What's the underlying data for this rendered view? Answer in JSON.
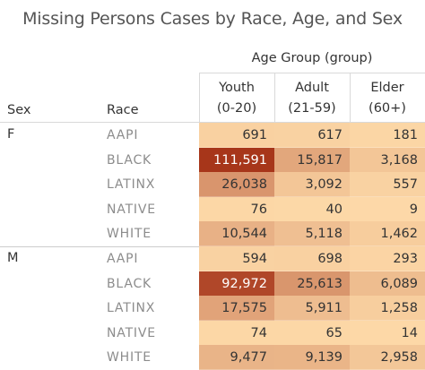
{
  "chart_data": {
    "type": "table",
    "title": "Missing Persons Cases by Race, Age, and Sex",
    "column_group_label": "Age Group (group)",
    "row_header_labels": [
      "Sex",
      "Race"
    ],
    "columns": [
      {
        "line1": "Youth",
        "line2": "(0-20)"
      },
      {
        "line1": "Adult",
        "line2": "(21-59)"
      },
      {
        "line1": "Elder",
        "line2": "(60+)"
      }
    ],
    "value_range": [
      0,
      111591
    ],
    "color_low": "#fdd9a8",
    "color_high": "#a7361a",
    "groups": [
      {
        "sex": "F",
        "rows": [
          {
            "race": "AAPI",
            "values": [
              691,
              617,
              181
            ],
            "labels": [
              "691",
              "617",
              "181"
            ]
          },
          {
            "race": "BLACK",
            "values": [
              111591,
              15817,
              3168
            ],
            "labels": [
              "111,591",
              "15,817",
              "3,168"
            ]
          },
          {
            "race": "LATINX",
            "values": [
              26038,
              3092,
              557
            ],
            "labels": [
              "26,038",
              "3,092",
              "557"
            ]
          },
          {
            "race": "NATIVE",
            "values": [
              76,
              40,
              9
            ],
            "labels": [
              "76",
              "40",
              "9"
            ]
          },
          {
            "race": "WHITE",
            "values": [
              10544,
              5118,
              1462
            ],
            "labels": [
              "10,544",
              "5,118",
              "1,462"
            ]
          }
        ]
      },
      {
        "sex": "M",
        "rows": [
          {
            "race": "AAPI",
            "values": [
              594,
              698,
              293
            ],
            "labels": [
              "594",
              "698",
              "293"
            ]
          },
          {
            "race": "BLACK",
            "values": [
              92972,
              25613,
              6089
            ],
            "labels": [
              "92,972",
              "25,613",
              "6,089"
            ]
          },
          {
            "race": "LATINX",
            "values": [
              17575,
              5911,
              1258
            ],
            "labels": [
              "17,575",
              "5,911",
              "1,258"
            ]
          },
          {
            "race": "NATIVE",
            "values": [
              74,
              65,
              14
            ],
            "labels": [
              "74",
              "65",
              "14"
            ]
          },
          {
            "race": "WHITE",
            "values": [
              9477,
              9139,
              2958
            ],
            "labels": [
              "9,477",
              "9,139",
              "2,958"
            ]
          }
        ]
      }
    ]
  }
}
